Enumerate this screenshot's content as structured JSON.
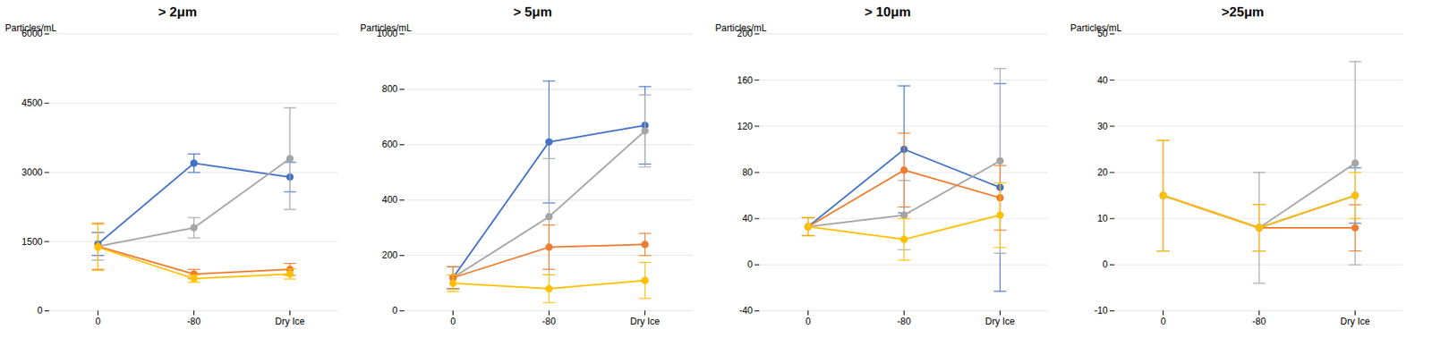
{
  "chart_data": [
    {
      "type": "line",
      "title": "> 2μm",
      "ylabel": "Particles/mL",
      "categories": [
        "0",
        "-80",
        "Dry Ice"
      ],
      "ylim": [
        0,
        6000
      ],
      "yticks": [
        0,
        1500,
        3000,
        4500,
        6000
      ],
      "grid": true,
      "marker": "circle",
      "series": [
        {
          "color": "#4472C4",
          "values": [
            1450,
            3200,
            2900
          ],
          "yerr": [
            250,
            200,
            320
          ]
        },
        {
          "color": "#A5A5A5",
          "values": [
            1400,
            1800,
            3300
          ],
          "yerr": [
            300,
            220,
            1100
          ]
        },
        {
          "color": "#ED7D31",
          "values": [
            1400,
            800,
            900
          ],
          "yerr": [
            500,
            100,
            130
          ]
        },
        {
          "color": "#FFC000",
          "values": [
            1380,
            700,
            800
          ],
          "yerr": [
            500,
            80,
            110
          ]
        }
      ]
    },
    {
      "type": "line",
      "title": "> 5μm",
      "ylabel": "Particles/mL",
      "categories": [
        "0",
        "-80",
        "Dry Ice"
      ],
      "ylim": [
        0,
        1000
      ],
      "yticks": [
        0,
        200,
        400,
        600,
        800,
        1000
      ],
      "grid": true,
      "marker": "circle",
      "series": [
        {
          "color": "#4472C4",
          "values": [
            120,
            610,
            670
          ],
          "yerr": [
            40,
            220,
            140
          ]
        },
        {
          "color": "#A5A5A5",
          "values": [
            120,
            340,
            650
          ],
          "yerr": [
            40,
            210,
            130
          ]
        },
        {
          "color": "#ED7D31",
          "values": [
            120,
            230,
            240
          ],
          "yerr": [
            40,
            80,
            40
          ]
        },
        {
          "color": "#FFC000",
          "values": [
            100,
            80,
            110
          ],
          "yerr": [
            30,
            50,
            65
          ]
        }
      ]
    },
    {
      "type": "line",
      "title": "> 10μm",
      "ylabel": "Particles/mL",
      "categories": [
        "0",
        "-80",
        "Dry Ice"
      ],
      "ylim": [
        -40,
        200
      ],
      "yticks": [
        -40,
        0,
        40,
        80,
        120,
        160,
        200
      ],
      "grid": true,
      "marker": "circle",
      "series": [
        {
          "color": "#4472C4",
          "values": [
            33,
            100,
            67
          ],
          "yerr": [
            8,
            55,
            90
          ]
        },
        {
          "color": "#A5A5A5",
          "values": [
            33,
            43,
            90
          ],
          "yerr": [
            8,
            30,
            80
          ]
        },
        {
          "color": "#ED7D31",
          "values": [
            33,
            82,
            58
          ],
          "yerr": [
            8,
            32,
            28
          ]
        },
        {
          "color": "#FFC000",
          "values": [
            33,
            22,
            43
          ],
          "yerr": [
            8,
            18,
            28
          ]
        }
      ]
    },
    {
      "type": "line",
      "title": ">25μm",
      "ylabel": "Particles/mL",
      "categories": [
        "0",
        "-80",
        "Dry Ice"
      ],
      "ylim": [
        -10,
        50
      ],
      "yticks": [
        -10,
        0,
        10,
        20,
        30,
        40,
        50
      ],
      "grid": true,
      "marker": "circle",
      "series": [
        {
          "color": "#4472C4",
          "values": [
            15,
            8,
            15
          ],
          "yerr": [
            12,
            5,
            6
          ]
        },
        {
          "color": "#A5A5A5",
          "values": [
            15,
            8,
            22
          ],
          "yerr": [
            12,
            12,
            22
          ]
        },
        {
          "color": "#ED7D31",
          "values": [
            15,
            8,
            8
          ],
          "yerr": [
            12,
            5,
            5
          ]
        },
        {
          "color": "#FFC000",
          "values": [
            15,
            8,
            15
          ],
          "yerr": [
            12,
            5,
            5
          ]
        }
      ]
    }
  ]
}
